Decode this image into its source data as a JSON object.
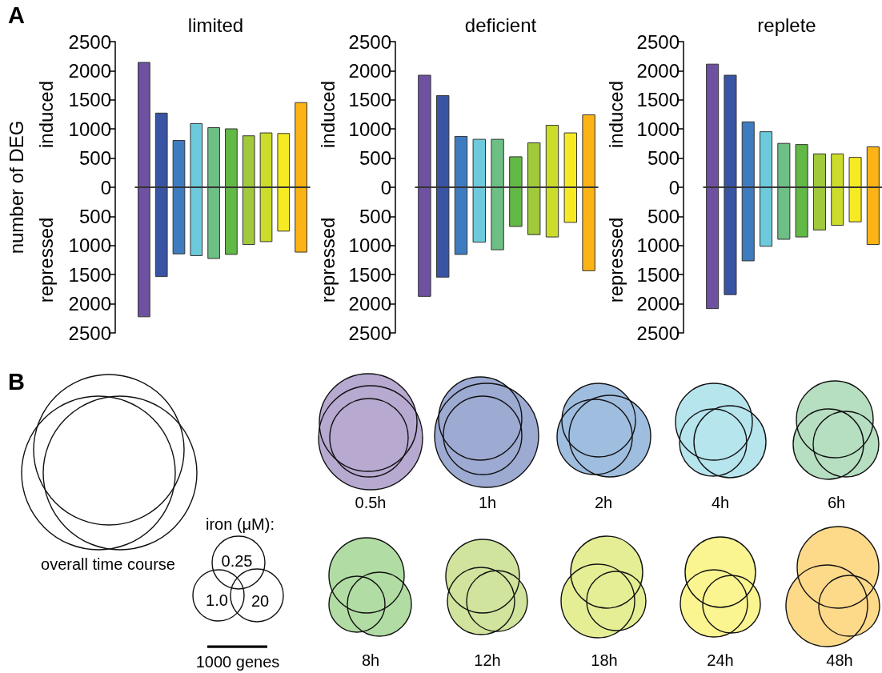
{
  "chart_data": [
    {
      "type": "bar",
      "title": "limited",
      "ylabel": "number of DEG",
      "annotations": [
        "induced",
        "repressed",
        "A"
      ],
      "categories": [
        null,
        null,
        null,
        null,
        null,
        null,
        null,
        null,
        null,
        null
      ],
      "stacked": true,
      "tick_labels": "y",
      "series": [
        {
          "colors": [
            "#6e52a1",
            "#3a54a4",
            "#3f7bbf",
            "#6dcadc",
            "#6dbf85",
            "#62b946",
            "#a0c93b",
            "#cbdc2b",
            "#f6eb23",
            "#fbb315"
          ],
          "values": [
            2150,
            1280,
            810,
            1100,
            1030,
            1010,
            890,
            940,
            930,
            1460
          ]
        },
        {
          "colors": [
            "#6e52a1",
            "#3a54a4",
            "#3f7bbf",
            "#6dcadc",
            "#6dbf85",
            "#62b946",
            "#a0c93b",
            "#cbdc2b",
            "#f6eb23",
            "#fbb315"
          ],
          "values": [
            -2230,
            -1540,
            -1150,
            -1180,
            -1230,
            -1160,
            -990,
            -940,
            -760,
            -1120
          ]
        }
      ],
      "ylim": [
        -2500,
        2500
      ],
      "yticks": [
        {
          "value": -2500,
          "label": "2500"
        },
        {
          "value": -2000,
          "label": "2000"
        },
        {
          "value": -1500,
          "label": "1500"
        },
        {
          "value": -1000,
          "label": "1000"
        },
        {
          "value": -500,
          "label": "500"
        },
        0,
        500,
        1000,
        1500,
        2000,
        2500
      ]
    },
    {
      "type": "bar",
      "title": "deficient",
      "annotations": [
        "induced",
        "repressed"
      ],
      "categories": [
        null,
        null,
        null,
        null,
        null,
        null,
        null,
        null,
        null,
        null
      ],
      "stacked": true,
      "tick_labels": "y",
      "series": [
        {
          "colors": [
            "#6e52a1",
            "#3a54a4",
            "#3f7bbf",
            "#6dcadc",
            "#6dbf85",
            "#62b946",
            "#a0c93b",
            "#cbdc2b",
            "#f6eb23",
            "#fbb315"
          ],
          "values": [
            1930,
            1580,
            880,
            830,
            830,
            530,
            770,
            1070,
            940,
            1250
          ]
        },
        {
          "colors": [
            "#6e52a1",
            "#3a54a4",
            "#3f7bbf",
            "#6dcadc",
            "#6dbf85",
            "#62b946",
            "#a0c93b",
            "#cbdc2b",
            "#f6eb23",
            "#fbb315"
          ],
          "values": [
            -1880,
            -1550,
            -1160,
            -950,
            -1080,
            -680,
            -820,
            -860,
            -610,
            -1440
          ]
        }
      ],
      "ylim": [
        -2500,
        2500
      ],
      "yticks": [
        {
          "value": -2500,
          "label": "2500"
        },
        {
          "value": -2000,
          "label": "2000"
        },
        {
          "value": -1500,
          "label": "1500"
        },
        {
          "value": -1000,
          "label": "1000"
        },
        {
          "value": -500,
          "label": "500"
        },
        0,
        500,
        1000,
        1500,
        2000,
        2500
      ]
    },
    {
      "type": "bar",
      "title": "replete",
      "annotations": [
        "induced",
        "repressed"
      ],
      "categories": [
        null,
        null,
        null,
        null,
        null,
        null,
        null,
        null,
        null,
        null
      ],
      "stacked": true,
      "tick_labels": "y",
      "series": [
        {
          "colors": [
            "#6e52a1",
            "#3a54a4",
            "#3f7bbf",
            "#6dcadc",
            "#6dbf85",
            "#62b946",
            "#a0c93b",
            "#cbdc2b",
            "#f6eb23",
            "#fbb315"
          ],
          "values": [
            2120,
            1930,
            1130,
            960,
            760,
            740,
            580,
            580,
            520,
            700
          ]
        },
        {
          "colors": [
            "#6e52a1",
            "#3a54a4",
            "#3f7bbf",
            "#6dcadc",
            "#6dbf85",
            "#62b946",
            "#a0c93b",
            "#cbdc2b",
            "#f6eb23",
            "#fbb315"
          ],
          "values": [
            -2090,
            -1850,
            -1270,
            -1020,
            -900,
            -860,
            -740,
            -660,
            -600,
            -990
          ]
        }
      ],
      "ylim": [
        -2500,
        2500
      ],
      "yticks": [
        {
          "value": -2500,
          "label": "2500"
        },
        {
          "value": -2000,
          "label": "2000"
        },
        {
          "value": -1500,
          "label": "1500"
        },
        {
          "value": -1000,
          "label": "1000"
        },
        {
          "value": -500,
          "label": "500"
        },
        0,
        500,
        1000,
        1500,
        2000,
        2500
      ]
    },
    {
      "type": "other",
      "annotations": [
        "B",
        "overall time course",
        "iron (μM):",
        "0.25",
        "1.0",
        "20",
        "1000 genes",
        "0.5h",
        "1h",
        "2h",
        "4h",
        "6h",
        "8h",
        "12h",
        "18h",
        "24h",
        "48h"
      ]
    }
  ]
}
